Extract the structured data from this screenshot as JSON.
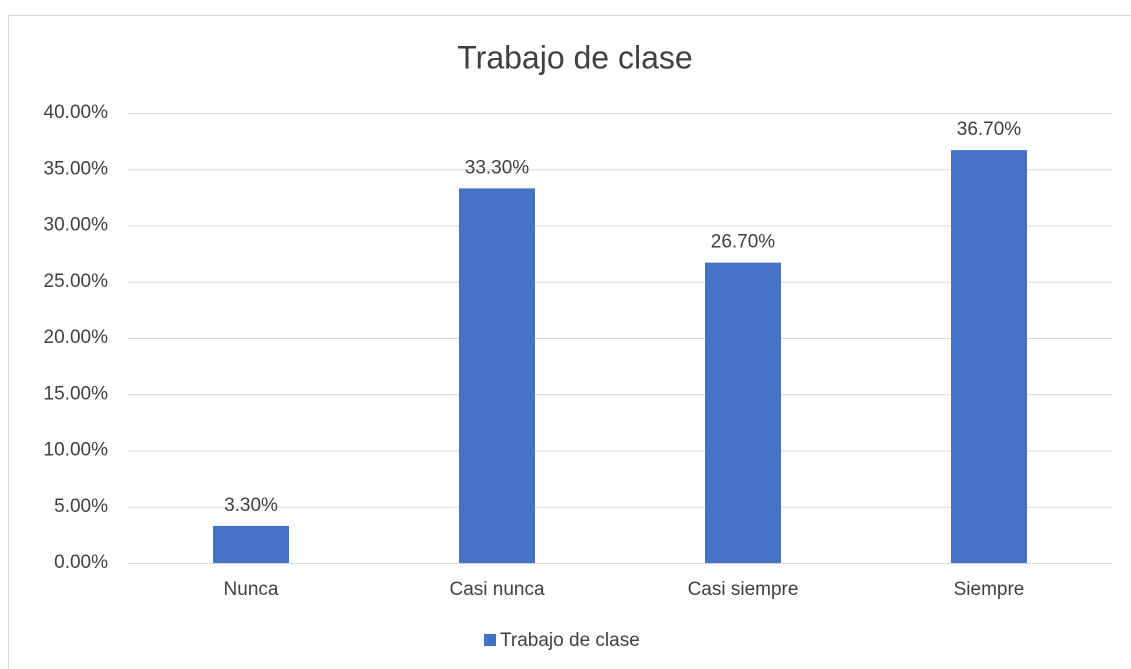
{
  "chart_data": {
    "type": "bar",
    "title": "Trabajo de clase",
    "categories": [
      "Nunca",
      "Casi nunca",
      "Casi siempre",
      "Siempre"
    ],
    "series": [
      {
        "name": "Trabajo de clase",
        "color": "#4472c4",
        "values": [
          3.3,
          33.3,
          26.7,
          36.7
        ],
        "value_labels": [
          "3.30%",
          "33.30%",
          "26.70%",
          "36.70%"
        ]
      }
    ],
    "ylim": [
      0,
      40
    ],
    "yticks": [
      {
        "value": 0,
        "label": "0.00%"
      },
      {
        "value": 5,
        "label": "5.00%"
      },
      {
        "value": 10,
        "label": "10.00%"
      },
      {
        "value": 15,
        "label": "15.00%"
      },
      {
        "value": 20,
        "label": "20.00%"
      },
      {
        "value": 25,
        "label": "25.00%"
      },
      {
        "value": 30,
        "label": "30.00%"
      },
      {
        "value": 35,
        "label": "35.00%"
      },
      {
        "value": 40,
        "label": "40.00%"
      }
    ],
    "grid": true,
    "legend": "bottom"
  }
}
